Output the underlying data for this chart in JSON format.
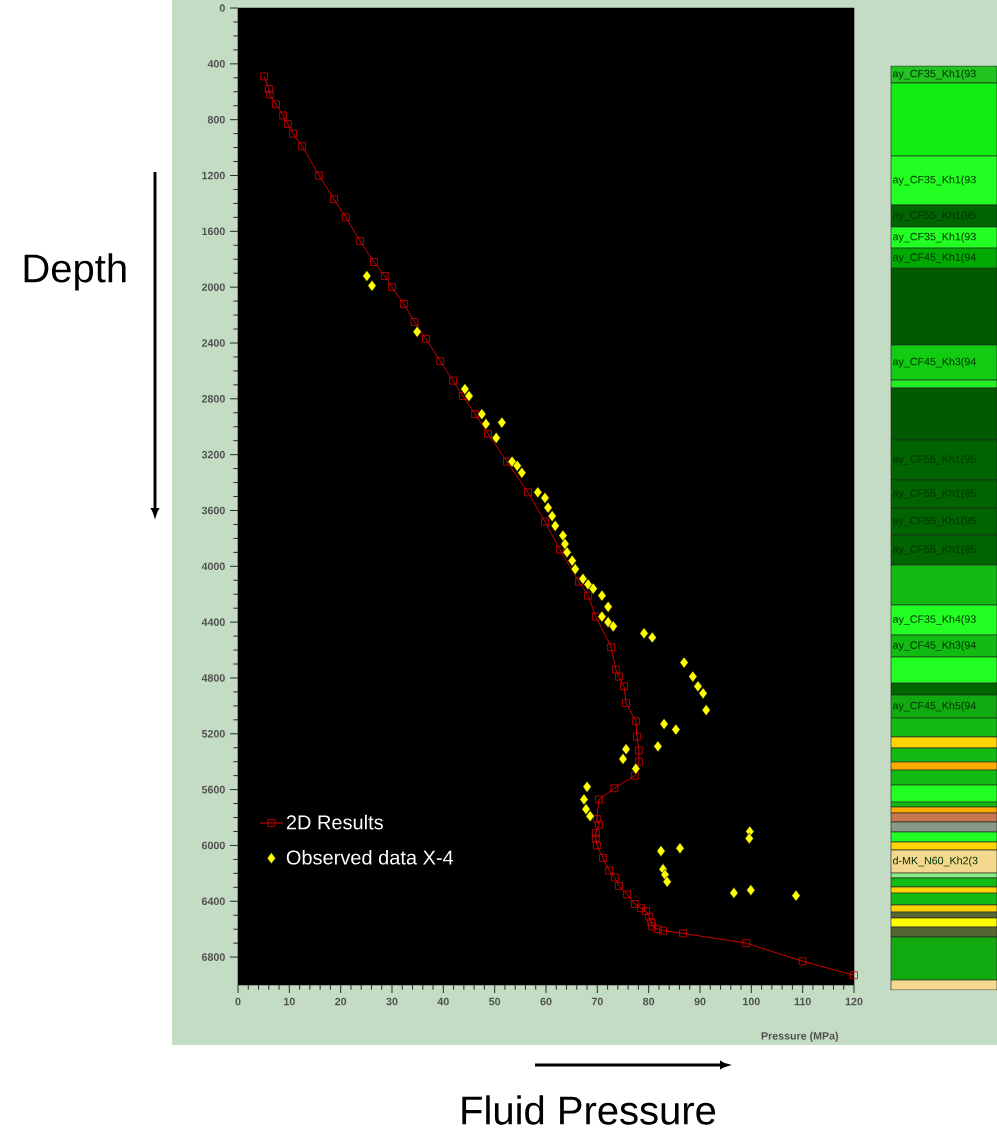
{
  "chart_data": [
    {
      "type": "line",
      "xlabel": "Pressure (MPa)",
      "ylabel": "Depth",
      "annotations": [
        "Fluid Pressure"
      ],
      "xlim": [
        0,
        120
      ],
      "ylim": [
        7000,
        0
      ],
      "xticks": [
        0,
        10,
        20,
        30,
        40,
        50,
        60,
        70,
        80,
        90,
        100,
        110,
        120
      ],
      "yticks": [
        0,
        400,
        800,
        1200,
        1600,
        2000,
        2400,
        2800,
        3200,
        3600,
        4000,
        4400,
        4800,
        5200,
        5600,
        6000,
        6400,
        6800
      ],
      "legend": "bottom left",
      "grid": false,
      "series": [
        {
          "name": "2D Results",
          "type": "line",
          "color": "#dd0000",
          "marker": "square",
          "line_style": "solid",
          "x": [
            5.1,
            6.0,
            6.2,
            7.4,
            8.8,
            9.7,
            10.7,
            12.5,
            15.8,
            18.7,
            21.0,
            23.8,
            26.5,
            28.6,
            30.0,
            32.3,
            34.4,
            36.6,
            39.4,
            41.9,
            43.8,
            46.2,
            48.7,
            52.4,
            56.5,
            59.8,
            62.7,
            66.4,
            68.2,
            69.7,
            72.7,
            73.6,
            74.2,
            75.2,
            75.6,
            77.5,
            77.7,
            78.1,
            78.1,
            77.3,
            73.3,
            70.3,
            69.9,
            70.3,
            69.7,
            69.7,
            69.9,
            71.1,
            72.3,
            73.4,
            74.2,
            75.8,
            77.3,
            78.5,
            79.5,
            80.1,
            80.5,
            80.7,
            81.8,
            82.8,
            86.7,
            99.0,
            110.0,
            120.0
          ],
          "values": [
            490,
            580,
            620,
            690,
            770,
            830,
            900,
            990,
            1200,
            1370,
            1500,
            1670,
            1820,
            1920,
            2000,
            2120,
            2250,
            2370,
            2530,
            2670,
            2780,
            2910,
            3050,
            3250,
            3470,
            3680,
            3880,
            4110,
            4210,
            4360,
            4580,
            4740,
            4790,
            4860,
            4980,
            5110,
            5220,
            5320,
            5400,
            5500,
            5590,
            5670,
            5810,
            5850,
            5910,
            5950,
            6000,
            6090,
            6180,
            6230,
            6290,
            6350,
            6420,
            6450,
            6470,
            6510,
            6550,
            6580,
            6600,
            6610,
            6630,
            6700,
            6830,
            6930
          ]
        },
        {
          "name": "Observed data X-4",
          "type": "scatter",
          "color": "#ffff00",
          "marker": "diamond",
          "x": [
            25.1,
            26.1,
            34.9,
            44.2,
            45.0,
            47.5,
            48.3,
            51.4,
            50.3,
            53.4,
            54.4,
            55.3,
            58.4,
            59.8,
            60.4,
            61.2,
            61.8,
            63.3,
            63.7,
            64.1,
            65.1,
            65.7,
            67.2,
            68.2,
            69.2,
            70.9,
            72.1,
            70.9,
            72.1,
            73.1,
            79.1,
            80.7,
            86.9,
            88.6,
            89.6,
            90.6,
            91.2,
            83.0,
            85.3,
            81.8,
            75.6,
            75.0,
            77.5,
            68.0,
            67.4,
            67.8,
            68.6,
            82.4,
            86.1,
            99.7,
            99.6,
            82.8,
            83.2,
            83.6,
            96.6,
            99.9,
            108.7
          ],
          "values": [
            1920,
            1990,
            2320,
            2730,
            2780,
            2910,
            2980,
            2970,
            3080,
            3250,
            3280,
            3330,
            3470,
            3510,
            3580,
            3640,
            3710,
            3780,
            3840,
            3900,
            3960,
            4020,
            4090,
            4130,
            4160,
            4210,
            4290,
            4360,
            4400,
            4430,
            4480,
            4510,
            4690,
            4790,
            4860,
            4910,
            5030,
            5130,
            5170,
            5290,
            5310,
            5380,
            5450,
            5580,
            5670,
            5740,
            5790,
            6040,
            6020,
            5900,
            5950,
            6170,
            6210,
            6260,
            6340,
            6320,
            6360
          ]
        }
      ]
    },
    {
      "type": "other",
      "annotations": [
        "ay_CF35_Kh1(93",
        "ay_CF35_Kh1(93",
        "ay_CF55_Kh1(95",
        "ay_CF35_Kh1(93",
        "ay_CF45_Kh1(94",
        "ay_CF45_Kh3(94",
        "ay_CF55_Kh1(95",
        "ay_CF55_Kh1(95",
        "ay_CF55_Kh1(95",
        "ay_CF55_Kh1(95",
        "ay_CF35_Kh4(93",
        "ay_CF45_Kh3(94",
        "ay_CF45_Kh5(94",
        "d-MK_N60_Kh2(3"
      ]
    }
  ]
}
